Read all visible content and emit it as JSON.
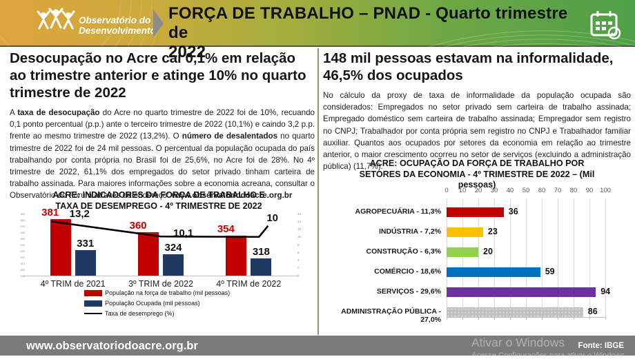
{
  "header": {
    "logo_line1": "Observatório do",
    "logo_line2": "Desenvolvimento",
    "title_line1": "FORÇA DE TRABALHO – PNAD -  Quarto trimestre  de",
    "title_line2": "2022"
  },
  "left": {
    "headline": "Desocupação no Acre cai 0,1% em relação ao trimestre anterior e atinge 10% no quarto trimestre de 2022",
    "paragraph_parts": [
      {
        "text": "A ",
        "bold": false
      },
      {
        "text": "taxa de desocupação",
        "bold": true
      },
      {
        "text": " do Acre no quarto trimestre de 2022 foi de 10%, recuando 0,1 ponto percentual (p.p.) ante o terceiro trimestre de 2022 (10,1%) e caindo 3,2 p.p. frente ao mesmo trimestre de 2022 (13,2%). O ",
        "bold": false
      },
      {
        "text": "número de desalentados",
        "bold": true
      },
      {
        "text": " no quarto trimestre de 2022 foi de 24 mil pessoas. O percentual da população ocupada do país trabalhando por conta própria no Brasil foi de 25,6%, no Acre foi de 28%. No 4º trimestre de 2022, 61,1% dos empregados do setor privado tinham carteira de trabalho assinada. Para maiores informações sobre a economia acreana, consultar o Observatório do Fórum através do endereço: ",
        "bold": false
      },
      {
        "text": "www.observatoriodoacre.org.br",
        "bold": true
      }
    ]
  },
  "right": {
    "headline": "148 mil pessoas estavam na informalidade, 46,5% dos ocupados",
    "paragraph": "No cálculo da proxy de taxa de informalidade da população ocupada são considerados: Empregados no setor privado sem carteira de trabalho assinada; Empregado doméstico sem carteira de trabalho assinada; Empregador sem registro no CNPJ; Trabalhador por conta própria sem registro no CNPJ e Trabalhador familiar auxiliar. Quantos aos ocupados por setores da economia em relação ao trimestre anterior, o maior crescimento ocorreu no setor de serviços (excluindo a administração pública) (11,7%)."
  },
  "chart_data": [
    {
      "id": "indicadores-combo",
      "type": "bar",
      "subtype": "bar+line-combo",
      "title": "ACRE: INDICADORES DA FORÇA DE TRABALHO E TAXA DE DESEMPREGO - 4º TRIMESTRE DE 2022",
      "categories": [
        "4º TRIM de 2021",
        "3º TRIM de 2022",
        "4º TRIM de 2022"
      ],
      "series": [
        {
          "name": "População na força de trabalho (mil pessoas)",
          "kind": "bar",
          "color": "#C00000",
          "values": [
            381,
            360,
            354
          ],
          "labels": [
            "381",
            "360",
            "354"
          ]
        },
        {
          "name": "População Ocupada (mil pessoas)",
          "kind": "bar",
          "color": "#1F3864",
          "values": [
            331,
            324,
            318
          ],
          "labels": [
            "331",
            "324",
            "318"
          ]
        },
        {
          "name": "Taxa de desemprego (%)",
          "kind": "line",
          "color": "#000000",
          "values": [
            13.2,
            10.1,
            10
          ],
          "labels": [
            "13,2",
            "10,1",
            "10"
          ]
        }
      ],
      "left_axis": {
        "min": 290,
        "max": 390,
        "ticks": [
          "390",
          "380",
          "370",
          "360",
          "350",
          "340",
          "330",
          "320",
          "310",
          "300",
          "290"
        ]
      },
      "right_axis": {
        "min": 0,
        "max": 16,
        "ticks": [
          "16",
          "14",
          "12",
          "10",
          "8",
          "6",
          "4",
          "2",
          "0"
        ]
      },
      "legend_position": "bottom-left",
      "grid": false
    },
    {
      "id": "setores-hbar",
      "type": "bar",
      "subtype": "horizontal",
      "title": "ACRE: OCUPAÇÃO DA FORÇA DE TRABALHO POR SETORES DA ECONOMIA - 4º TRIMESTRE DE 2022 – (Mil pessoas)",
      "categories": [
        "AGROPECUÁRIA  - 11,3%",
        "INDÚSTRIA - 7,2%",
        "CONSTRUÇÃO - 6,3%",
        "COMÉRCIO - 18,6%",
        "SERVIÇOS  - 29,6%",
        "ADMINISTRAÇÃO PÚBLICA - 27,0%"
      ],
      "values": [
        36,
        23,
        20,
        59,
        94,
        86
      ],
      "colors": [
        "#C00000",
        "#FFC000",
        "#92D050",
        "#0070C0",
        "#7030A0",
        "#BFBFBF"
      ],
      "patterned": [
        false,
        false,
        false,
        false,
        false,
        true
      ],
      "xlim": [
        0,
        100
      ],
      "x_ticks": [
        0,
        10,
        20,
        30,
        40,
        50,
        60,
        70,
        80,
        90,
        100
      ],
      "grid": true,
      "xlabel": "",
      "ylabel": ""
    }
  ],
  "footer": {
    "url": "www.observatoriodoacre.org.br",
    "source": "Fonte: IBGE",
    "watermark_line1": "Ativar o Windows",
    "watermark_line2": "Acesse Configurações para ativar o Windows."
  }
}
